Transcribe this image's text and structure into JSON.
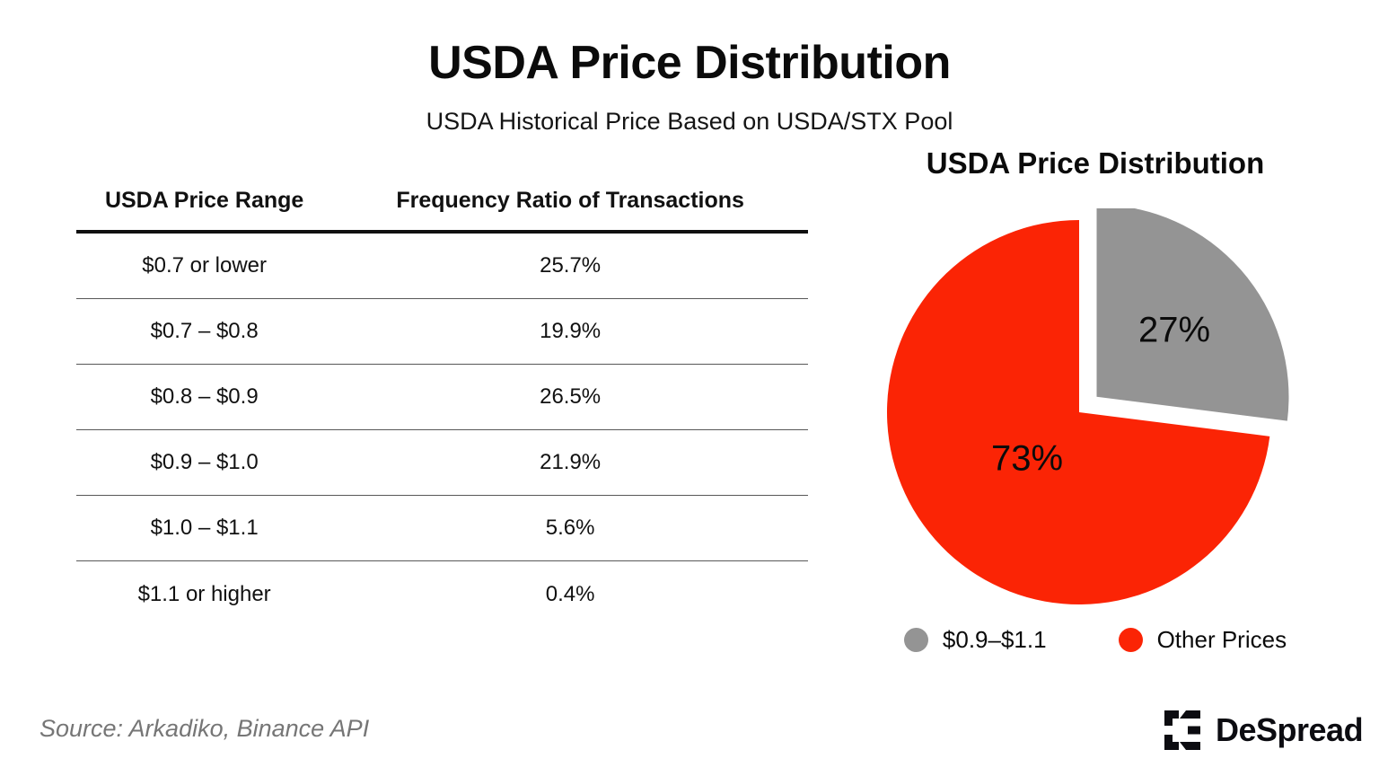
{
  "header": {
    "title": "USDA Price Distribution",
    "subtitle": "USDA Historical Price Based on USDA/STX Pool"
  },
  "table": {
    "columns": [
      "USDA Price Range",
      "Frequency Ratio of Transactions"
    ],
    "rows": [
      {
        "range": "$0.7 or lower",
        "ratio": "25.7%"
      },
      {
        "range": "$0.7 – $0.8",
        "ratio": "19.9%"
      },
      {
        "range": "$0.8 – $0.9",
        "ratio": "26.5%"
      },
      {
        "range": "$0.9 – $1.0",
        "ratio": "21.9%"
      },
      {
        "range": "$1.0 – $1.1",
        "ratio": "5.6%"
      },
      {
        "range": "$1.1 or higher",
        "ratio": "0.4%"
      }
    ]
  },
  "chart_data": {
    "type": "pie",
    "title": "USDA Price Distribution",
    "labels": [
      "$0.9–$1.1",
      "Other Prices"
    ],
    "values": [
      27,
      73
    ],
    "display_values": [
      "27%",
      "73%"
    ],
    "colors": [
      "#949494",
      "#FB2405"
    ],
    "exploded": [
      true,
      false
    ],
    "start_angle_deg": 0,
    "direction": "clockwise",
    "legend_position": "bottom"
  },
  "footer": {
    "source": "Source: Arkadiko, Binance API",
    "brand": "DeSpread"
  }
}
